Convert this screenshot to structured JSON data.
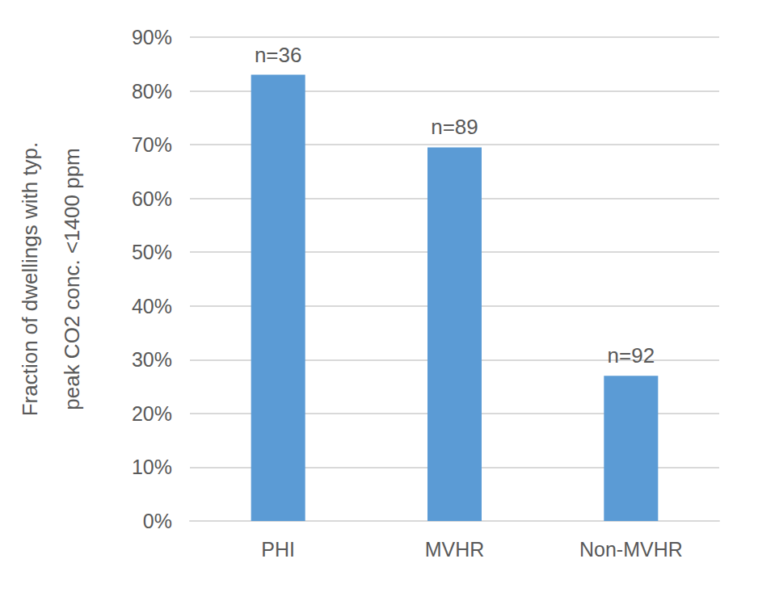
{
  "chart_data": {
    "type": "bar",
    "y_label": "Fraction of dwellings with typ.\npeak CO2 conc. <1400 ppm",
    "categories": [
      "PHI",
      "MVHR",
      "Non-MVHR"
    ],
    "values": [
      83,
      69.5,
      27
    ],
    "annotations": [
      "n=36",
      "n=89",
      "n=92"
    ],
    "color": "#5b9bd5",
    "ylim": [
      0,
      90
    ],
    "yticks": [
      {
        "value": 0,
        "label": "0%"
      },
      {
        "value": 10,
        "label": "10%"
      },
      {
        "value": 20,
        "label": "20%"
      },
      {
        "value": 30,
        "label": "30%"
      },
      {
        "value": 40,
        "label": "40%"
      },
      {
        "value": 50,
        "label": "50%"
      },
      {
        "value": 60,
        "label": "60%"
      },
      {
        "value": 70,
        "label": "70%"
      },
      {
        "value": 80,
        "label": "80%"
      },
      {
        "value": 90,
        "label": "90%"
      }
    ],
    "grid": true
  }
}
